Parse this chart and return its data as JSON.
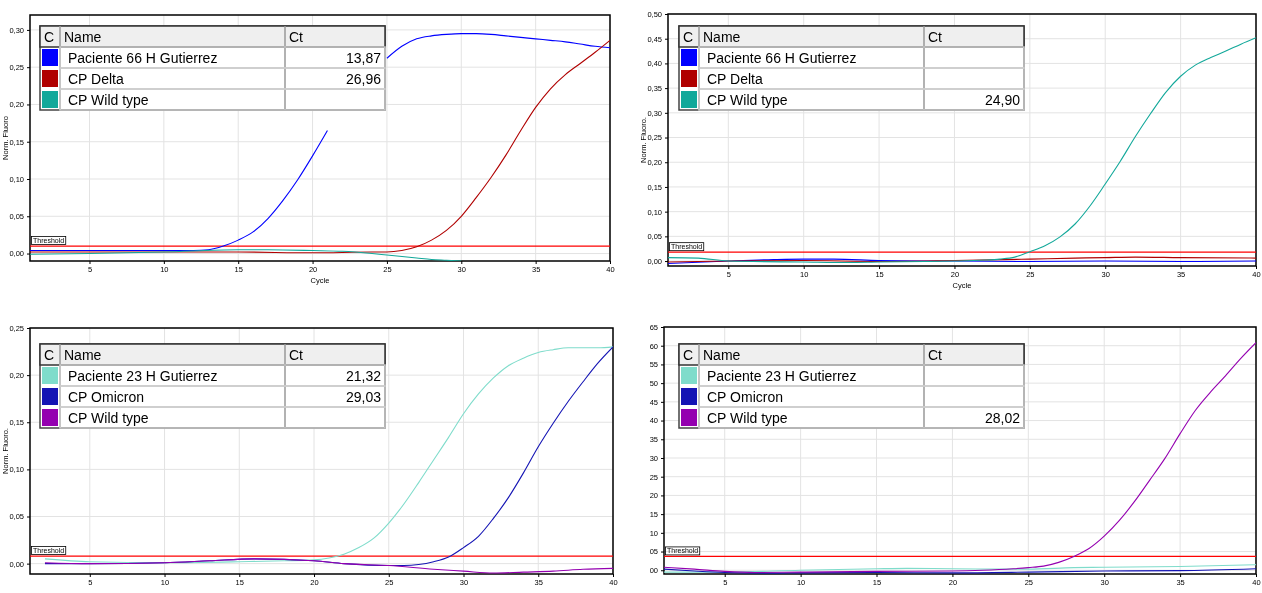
{
  "chart_data": [
    {
      "type": "line",
      "xlabel": "Cycle",
      "ylabel": "Norm. Fluoro",
      "xlim": [
        1,
        40
      ],
      "ylim": [
        -0.01,
        0.32
      ],
      "xticks": [
        5,
        10,
        15,
        20,
        25,
        30,
        35,
        40
      ],
      "yticks": [
        {
          "value": 0,
          "label": "0,00"
        },
        {
          "value": 0.05,
          "label": "0,05"
        },
        {
          "value": 0.1,
          "label": "0,10"
        },
        {
          "value": 0.15,
          "label": "0,15"
        },
        {
          "value": 0.2,
          "label": "0,20"
        },
        {
          "value": 0.25,
          "label": "0,25"
        },
        {
          "value": 0.3,
          "label": "0,30"
        }
      ],
      "grid": true,
      "legend": "top left",
      "series": [
        {
          "name": "Paciente 66 H Gutierrez",
          "color": "#0000ff",
          "x": [
            1,
            5,
            10,
            12,
            13,
            14,
            15,
            16,
            17,
            18,
            19,
            20,
            21,
            22,
            23,
            24,
            25,
            26,
            27,
            28,
            29,
            30,
            31,
            32,
            33,
            34,
            35,
            36,
            37,
            38,
            39,
            40
          ],
          "values": [
            0.004,
            0.004,
            0.004,
            0.004,
            0.005,
            0.01,
            0.018,
            0.029,
            0.047,
            0.071,
            0.099,
            0.131,
            0.165,
            null,
            null,
            null,
            0.262,
            0.278,
            0.288,
            0.292,
            0.294,
            0.295,
            0.295,
            0.294,
            0.292,
            0.29,
            0.288,
            0.286,
            0.284,
            0.281,
            0.278,
            0.276
          ]
        },
        {
          "name": "CP Delta",
          "color": "#b00000",
          "x": [
            1,
            5,
            10,
            15,
            20,
            24,
            25,
            26,
            27,
            28,
            29,
            30,
            31,
            32,
            33,
            34,
            35,
            36,
            37,
            38,
            39,
            40
          ],
          "values": [
            0.002,
            0.002,
            0.002,
            0.002,
            0.001,
            0.002,
            0.002,
            0.004,
            0.009,
            0.018,
            0.031,
            0.05,
            0.075,
            0.102,
            0.132,
            0.165,
            0.196,
            0.221,
            0.24,
            0.255,
            0.27,
            0.286
          ]
        },
        {
          "name": "CP Wild type",
          "color": "#12a89a",
          "x": [
            1,
            5,
            10,
            15,
            17,
            20,
            22,
            24,
            25,
            27,
            28,
            29,
            30
          ],
          "values": [
            -0.001,
            0,
            0.002,
            0.005,
            0.005,
            0.004,
            0.003,
            0,
            -0.002,
            -0.006,
            -0.008,
            -0.009,
            -0.01
          ]
        }
      ],
      "ref_lines": [
        {
          "axis": "y",
          "value": 0.01,
          "label": "Threshold",
          "color": "#ff0000"
        }
      ],
      "annotations": [
        "C",
        "Name",
        "Ct",
        "13,87",
        "26,96",
        null
      ]
    },
    {
      "type": "line",
      "xlabel": "Cycle",
      "ylabel": "Norm. Fluoro.",
      "xlim": [
        1,
        40
      ],
      "ylim": [
        -0.01,
        0.5
      ],
      "xticks": [
        5,
        10,
        15,
        20,
        25,
        30,
        35,
        40
      ],
      "yticks": [
        {
          "value": 0,
          "label": "0,00"
        },
        {
          "value": 0.05,
          "label": "0,05"
        },
        {
          "value": 0.1,
          "label": "0,10"
        },
        {
          "value": 0.15,
          "label": "0,15"
        },
        {
          "value": 0.2,
          "label": "0,20"
        },
        {
          "value": 0.25,
          "label": "0,25"
        },
        {
          "value": 0.3,
          "label": "0,30"
        },
        {
          "value": 0.35,
          "label": "0,35"
        },
        {
          "value": 0.4,
          "label": "0,40"
        },
        {
          "value": 0.45,
          "label": "0,45"
        },
        {
          "value": 0.5,
          "label": "0,50"
        }
      ],
      "grid": true,
      "legend": "top left",
      "series": [
        {
          "name": "Paciente 66 H Gutierrez",
          "color": "#0000ff",
          "x": [
            1,
            5,
            8,
            10,
            12,
            15,
            18,
            20,
            25,
            30,
            35,
            40
          ],
          "values": [
            -0.005,
            0,
            0.003,
            0.004,
            0.004,
            0.001,
            0,
            0,
            -0.001,
            0,
            -0.001,
            0
          ]
        },
        {
          "name": "CP Delta",
          "color": "#b00000",
          "x": [
            1,
            5,
            10,
            15,
            20,
            25,
            28,
            30,
            32,
            35,
            40
          ],
          "values": [
            -0.002,
            0,
            0.001,
            -0.001,
            0.001,
            0.004,
            0.006,
            0.007,
            0.008,
            0.007,
            0.006
          ]
        },
        {
          "name": "CP Wild type",
          "color": "#12a89a",
          "x": [
            1,
            3,
            5,
            10,
            13,
            15,
            18,
            20,
            22,
            23,
            24,
            25,
            26,
            27,
            28,
            29,
            30,
            31,
            32,
            33,
            34,
            35,
            36,
            37,
            38,
            39,
            40
          ],
          "values": [
            0.007,
            0.006,
            0,
            -0.002,
            -0.003,
            -0.002,
            -0.001,
            0,
            0.002,
            0.004,
            0.008,
            0.019,
            0.031,
            0.049,
            0.075,
            0.112,
            0.156,
            0.202,
            0.252,
            0.298,
            0.341,
            0.374,
            0.397,
            0.412,
            0.425,
            0.439,
            0.452
          ]
        }
      ],
      "ref_lines": [
        {
          "axis": "y",
          "value": 0.018,
          "label": "Threshold",
          "color": "#ff0000"
        }
      ],
      "annotations": [
        "C",
        "Name",
        "Ct",
        null,
        null,
        "24,90"
      ]
    },
    {
      "type": "line",
      "ylabel": "Norm. Fluoro.",
      "xlim": [
        1,
        40
      ],
      "ylim": [
        -0.011,
        0.25
      ],
      "xticks": [
        5,
        10,
        15,
        20,
        25,
        30,
        35,
        40
      ],
      "yticks": [
        {
          "value": 0,
          "label": "0,00"
        },
        {
          "value": 0.05,
          "label": "0,05"
        },
        {
          "value": 0.1,
          "label": "0,10"
        },
        {
          "value": 0.15,
          "label": "0,15"
        },
        {
          "value": 0.2,
          "label": "0,20"
        },
        {
          "value": 0.25,
          "label": "0,25"
        }
      ],
      "grid": true,
      "legend": "top left",
      "series": [
        {
          "name": "Paciente 23 H Gutierrez",
          "color": "#7fdccb",
          "x": [
            2,
            5,
            10,
            15,
            18,
            20,
            21,
            22,
            23,
            24,
            25,
            26,
            27,
            28,
            29,
            30,
            31,
            32,
            33,
            34,
            35,
            36,
            37,
            38,
            39,
            40
          ],
          "values": [
            0.005,
            0.002,
            0.001,
            0.002,
            0.003,
            0.004,
            0.006,
            0.01,
            0.017,
            0.027,
            0.043,
            0.063,
            0.086,
            0.11,
            0.134,
            0.159,
            0.18,
            0.197,
            0.21,
            0.218,
            0.224,
            0.227,
            0.229,
            0.229,
            0.229,
            0.23
          ]
        },
        {
          "name": "CP Omicron",
          "color": "#1414b4",
          "x": [
            2,
            5,
            10,
            13,
            16,
            20,
            22,
            25,
            26,
            27,
            28,
            29,
            30,
            31,
            32,
            33,
            34,
            35,
            36,
            37,
            38,
            39,
            40
          ],
          "values": [
            0,
            0,
            0.001,
            0.003,
            0.005,
            0.003,
            0,
            -0.002,
            -0.002,
            -0.001,
            0.002,
            0.007,
            0.017,
            0.029,
            0.048,
            0.07,
            0.096,
            0.124,
            0.149,
            0.172,
            0.193,
            0.213,
            0.23
          ]
        },
        {
          "name": "CP Wild type",
          "color": "#9400b0",
          "x": [
            2,
            5,
            10,
            13,
            16,
            20,
            22,
            25,
            28,
            30,
            32,
            34,
            36,
            38,
            40
          ],
          "values": [
            0.001,
            0,
            0.001,
            0.003,
            0.005,
            0.003,
            0,
            -0.002,
            -0.006,
            -0.008,
            -0.01,
            -0.009,
            -0.008,
            -0.006,
            -0.005
          ]
        }
      ],
      "ref_lines": [
        {
          "axis": "y",
          "value": 0.008,
          "label": "Threshold",
          "color": "#ff0000"
        }
      ],
      "annotations": [
        "C",
        "Name",
        "Ct",
        "21,32",
        "29,03",
        null
      ]
    },
    {
      "type": "line",
      "xlim": [
        1,
        40
      ],
      "ylim": [
        -1,
        65
      ],
      "xticks": [
        5,
        10,
        15,
        20,
        25,
        30,
        35,
        40
      ],
      "yticks": [
        {
          "value": 0,
          "label": "00"
        },
        {
          "value": 5,
          "label": "05"
        },
        10,
        15,
        20,
        25,
        30,
        35,
        40,
        45,
        50,
        55,
        60,
        65
      ],
      "grid": true,
      "legend": "top left",
      "series": [
        {
          "name": "Paciente 23 H Gutierrez",
          "color": "#7fdccb",
          "x": [
            1,
            5,
            10,
            15,
            17,
            20,
            25,
            28,
            30,
            35,
            40
          ],
          "values": [
            -0.5,
            -0.5,
            0,
            0.4,
            0.5,
            0.4,
            0.3,
            0.7,
            0.8,
            1,
            1.5
          ]
        },
        {
          "name": "CP Omicron",
          "color": "#1414b4",
          "x": [
            1,
            3,
            5,
            8,
            10,
            15,
            20,
            25,
            30,
            35,
            40
          ],
          "values": [
            0.3,
            -0.2,
            -0.6,
            -0.8,
            -0.7,
            -0.6,
            -0.7,
            -0.5,
            -0.2,
            -0.1,
            0.4
          ]
        },
        {
          "name": "CP Wild type",
          "color": "#9400b0",
          "x": [
            1,
            3,
            5,
            7,
            10,
            15,
            20,
            22,
            24,
            25,
            26,
            27,
            28,
            29,
            30,
            31,
            32,
            33,
            34,
            35,
            36,
            37,
            38,
            39,
            40
          ],
          "values": [
            0.8,
            0.3,
            -0.3,
            -0.6,
            -0.5,
            -0.3,
            -0.2,
            0,
            0.4,
            0.7,
            1.1,
            2.1,
            3.7,
            5.8,
            9.1,
            13.3,
            18.4,
            24.1,
            29.9,
            36.5,
            42.7,
            47.6,
            52,
            56.6,
            60.8
          ]
        }
      ],
      "ref_lines": [
        {
          "axis": "y",
          "value": 3.7,
          "label": "Threshold",
          "color": "#ff0000"
        }
      ],
      "annotations": [
        "C",
        "Name",
        "Ct",
        null,
        null,
        "28,02"
      ]
    }
  ]
}
